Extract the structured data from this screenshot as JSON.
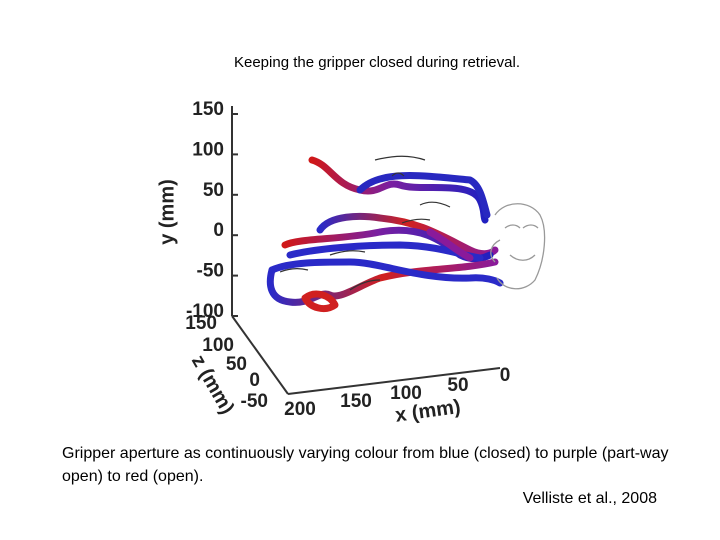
{
  "title": "Keeping the gripper closed during retrieval.",
  "figure": {
    "y_axis": {
      "label": "y (mm)",
      "ticks": [
        "150",
        "100",
        "50",
        "0",
        "-50",
        "-100"
      ]
    },
    "z_axis": {
      "label": "z (mm)",
      "ticks": [
        "150",
        "100",
        "50",
        "0",
        "-50"
      ]
    },
    "x_axis": {
      "label": "x (mm)",
      "ticks": [
        "200",
        "150",
        "100",
        "50",
        "0"
      ]
    }
  },
  "caption": "Gripper aperture as continuously varying colour from blue (closed) to purple (part-way open) to red (open).",
  "citation": "Velliste et al., 2008"
}
